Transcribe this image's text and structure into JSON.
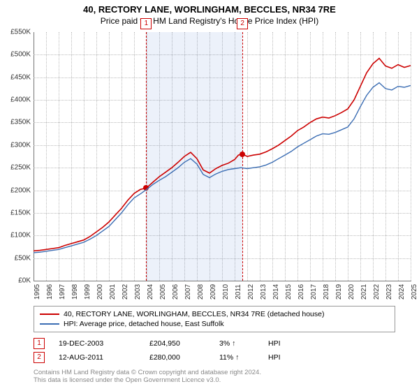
{
  "title": "40, RECTORY LANE, WORLINGHAM, BECCLES, NR34 7RE",
  "subtitle": "Price paid vs. HM Land Registry's House Price Index (HPI)",
  "chart": {
    "type": "line",
    "x_start_year": 1995,
    "x_end_year": 2025,
    "y_min": 0,
    "y_max": 550,
    "y_step": 50,
    "y_prefix": "£",
    "y_suffix": "K",
    "background_color": "#ffffff",
    "grid_color": "#bbbbbb",
    "axis_color": "#777777",
    "tick_fontsize": 10,
    "shade": {
      "from_year": 2003.97,
      "to_year": 2011.62,
      "color": "rgba(100,140,210,0.12)"
    },
    "series": [
      {
        "name": "40, RECTORY LANE, WORLINGHAM, BECCLES, NR34 7RE (detached house)",
        "color": "#cc0000",
        "width": 1.6,
        "points": [
          [
            1995,
            66
          ],
          [
            1995.5,
            67
          ],
          [
            1996,
            69
          ],
          [
            1996.5,
            71
          ],
          [
            1997,
            73
          ],
          [
            1997.5,
            78
          ],
          [
            1998,
            82
          ],
          [
            1998.5,
            86
          ],
          [
            1999,
            90
          ],
          [
            1999.5,
            98
          ],
          [
            2000,
            108
          ],
          [
            2000.5,
            118
          ],
          [
            2001,
            130
          ],
          [
            2001.5,
            145
          ],
          [
            2002,
            160
          ],
          [
            2002.5,
            178
          ],
          [
            2003,
            193
          ],
          [
            2003.5,
            202
          ],
          [
            2003.97,
            205
          ],
          [
            2004.5,
            218
          ],
          [
            2005,
            230
          ],
          [
            2005.5,
            240
          ],
          [
            2006,
            250
          ],
          [
            2006.5,
            262
          ],
          [
            2007,
            275
          ],
          [
            2007.5,
            284
          ],
          [
            2008,
            270
          ],
          [
            2008.5,
            245
          ],
          [
            2009,
            238
          ],
          [
            2009.5,
            248
          ],
          [
            2010,
            255
          ],
          [
            2010.5,
            260
          ],
          [
            2011,
            268
          ],
          [
            2011.3,
            278
          ],
          [
            2011.62,
            280
          ],
          [
            2012,
            275
          ],
          [
            2012.5,
            278
          ],
          [
            2013,
            280
          ],
          [
            2013.5,
            285
          ],
          [
            2014,
            292
          ],
          [
            2014.5,
            300
          ],
          [
            2015,
            310
          ],
          [
            2015.5,
            320
          ],
          [
            2016,
            332
          ],
          [
            2016.5,
            340
          ],
          [
            2017,
            350
          ],
          [
            2017.5,
            358
          ],
          [
            2018,
            362
          ],
          [
            2018.5,
            360
          ],
          [
            2019,
            365
          ],
          [
            2019.5,
            372
          ],
          [
            2020,
            380
          ],
          [
            2020.5,
            400
          ],
          [
            2021,
            430
          ],
          [
            2021.5,
            460
          ],
          [
            2022,
            480
          ],
          [
            2022.5,
            492
          ],
          [
            2023,
            475
          ],
          [
            2023.5,
            470
          ],
          [
            2024,
            478
          ],
          [
            2024.5,
            472
          ],
          [
            2025,
            476
          ]
        ]
      },
      {
        "name": "HPI: Average price, detached house, East Suffolk",
        "color": "#3b6db3",
        "width": 1.4,
        "points": [
          [
            1995,
            62
          ],
          [
            1995.5,
            63
          ],
          [
            1996,
            65
          ],
          [
            1996.5,
            67
          ],
          [
            1997,
            69
          ],
          [
            1997.5,
            73
          ],
          [
            1998,
            77
          ],
          [
            1998.5,
            81
          ],
          [
            1999,
            85
          ],
          [
            1999.5,
            92
          ],
          [
            2000,
            100
          ],
          [
            2000.5,
            110
          ],
          [
            2001,
            120
          ],
          [
            2001.5,
            135
          ],
          [
            2002,
            150
          ],
          [
            2002.5,
            168
          ],
          [
            2003,
            183
          ],
          [
            2003.5,
            192
          ],
          [
            2004,
            202
          ],
          [
            2004.5,
            213
          ],
          [
            2005,
            222
          ],
          [
            2005.5,
            230
          ],
          [
            2006,
            240
          ],
          [
            2006.5,
            250
          ],
          [
            2007,
            262
          ],
          [
            2007.5,
            270
          ],
          [
            2008,
            258
          ],
          [
            2008.5,
            235
          ],
          [
            2009,
            228
          ],
          [
            2009.5,
            236
          ],
          [
            2010,
            242
          ],
          [
            2010.5,
            246
          ],
          [
            2011,
            248
          ],
          [
            2011.5,
            250
          ],
          [
            2012,
            248
          ],
          [
            2012.5,
            250
          ],
          [
            2013,
            252
          ],
          [
            2013.5,
            256
          ],
          [
            2014,
            262
          ],
          [
            2014.5,
            270
          ],
          [
            2015,
            278
          ],
          [
            2015.5,
            286
          ],
          [
            2016,
            296
          ],
          [
            2016.5,
            304
          ],
          [
            2017,
            312
          ],
          [
            2017.5,
            320
          ],
          [
            2018,
            325
          ],
          [
            2018.5,
            324
          ],
          [
            2019,
            328
          ],
          [
            2019.5,
            334
          ],
          [
            2020,
            340
          ],
          [
            2020.5,
            358
          ],
          [
            2021,
            385
          ],
          [
            2021.5,
            410
          ],
          [
            2022,
            428
          ],
          [
            2022.5,
            438
          ],
          [
            2023,
            425
          ],
          [
            2023.5,
            422
          ],
          [
            2024,
            430
          ],
          [
            2024.5,
            428
          ],
          [
            2025,
            432
          ]
        ]
      }
    ],
    "markers": [
      {
        "id": "1",
        "year": 2003.97,
        "value": 205
      },
      {
        "id": "2",
        "year": 2011.62,
        "value": 280
      }
    ]
  },
  "legend": {
    "border_color": "#999999"
  },
  "sales": [
    {
      "id": "1",
      "date": "19-DEC-2003",
      "price": "£204,950",
      "pct": "3%",
      "arrow": "up",
      "tag": "HPI"
    },
    {
      "id": "2",
      "date": "12-AUG-2011",
      "price": "£280,000",
      "pct": "11%",
      "arrow": "up",
      "tag": "HPI"
    }
  ],
  "footer": {
    "line1": "Contains HM Land Registry data © Crown copyright and database right 2024.",
    "line2": "This data is licensed under the Open Government Licence v3.0."
  }
}
